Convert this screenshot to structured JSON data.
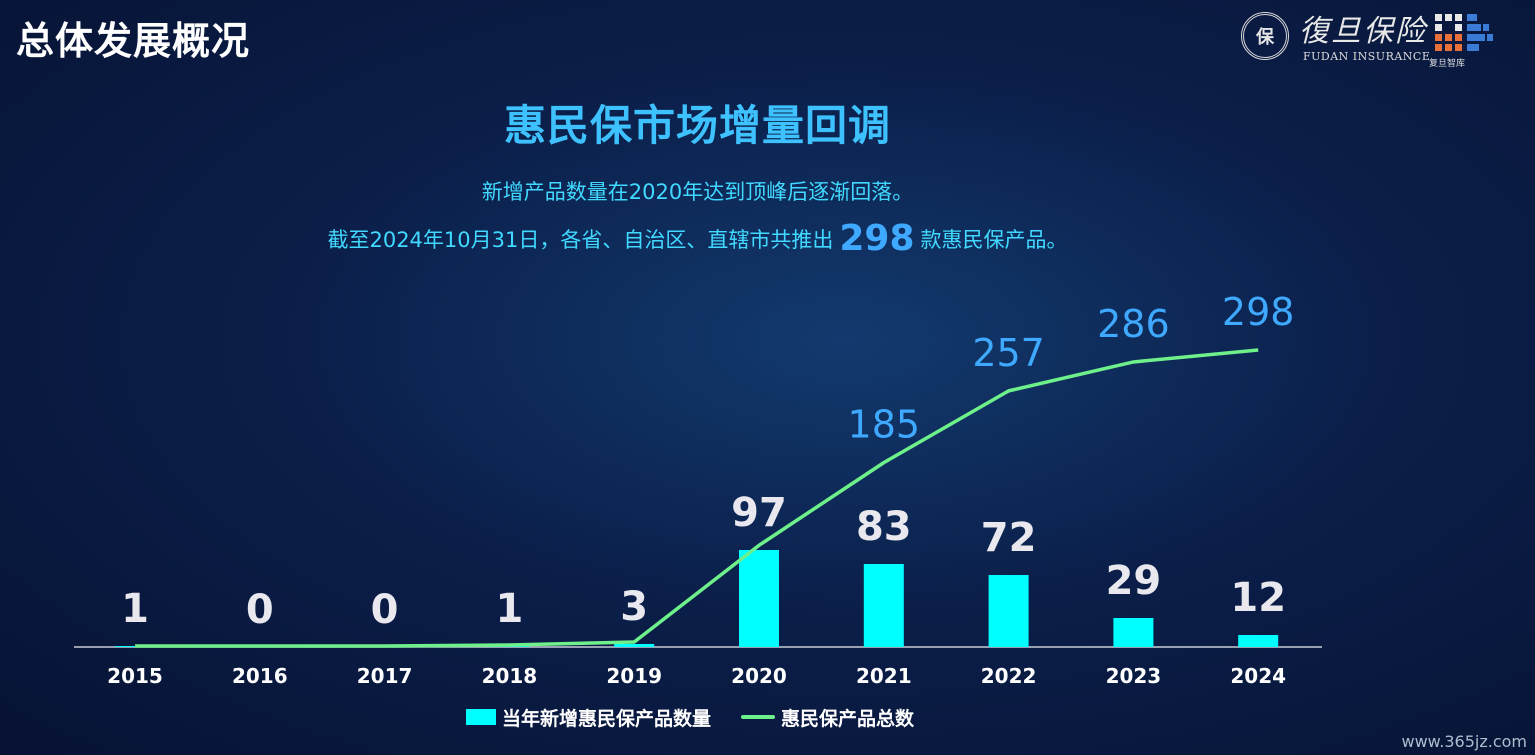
{
  "header": {
    "section_title": "总体发展概况",
    "logo": {
      "seal_text": "保",
      "brand_cn": "復旦保险",
      "brand_en": "FUDAN INSURANCE",
      "think_tank": "复旦智库"
    }
  },
  "subtitle": {
    "line1": "新增产品数量在2020年达到顶峰后逐渐回落。",
    "line2_prefix": "截至2024年10月31日，各省、自治区、直辖市共推出",
    "line2_number": "298",
    "line2_suffix": "款惠民保产品。"
  },
  "watermark": "www.365jz.com",
  "colors": {
    "bar": "#00ffff",
    "line": "#6ef08a",
    "bar_label": "#e8e8ee",
    "line_label": "#3fa9ff",
    "title": "#3ec1ff",
    "subtitle": "#41d9ff",
    "axis": "#c7ccd8"
  },
  "chart_data": {
    "type": "bar",
    "title": "惠民保市场增量回调",
    "categories": [
      "2015",
      "2016",
      "2017",
      "2018",
      "2019",
      "2020",
      "2021",
      "2022",
      "2023",
      "2024"
    ],
    "series": [
      {
        "name": "当年新增惠民保产品数量",
        "type": "bar",
        "values": [
          1,
          0,
          0,
          1,
          3,
          97,
          83,
          72,
          29,
          12
        ]
      },
      {
        "name": "惠民保产品总数",
        "type": "line",
        "values": [
          1,
          1,
          1,
          2,
          5,
          102,
          185,
          257,
          286,
          298
        ]
      }
    ],
    "line_labels_shown": [
      "2021",
      "2022",
      "2023",
      "2024"
    ],
    "grid": false,
    "legend_position": "bottom",
    "xlabel": "",
    "ylabel": ""
  }
}
